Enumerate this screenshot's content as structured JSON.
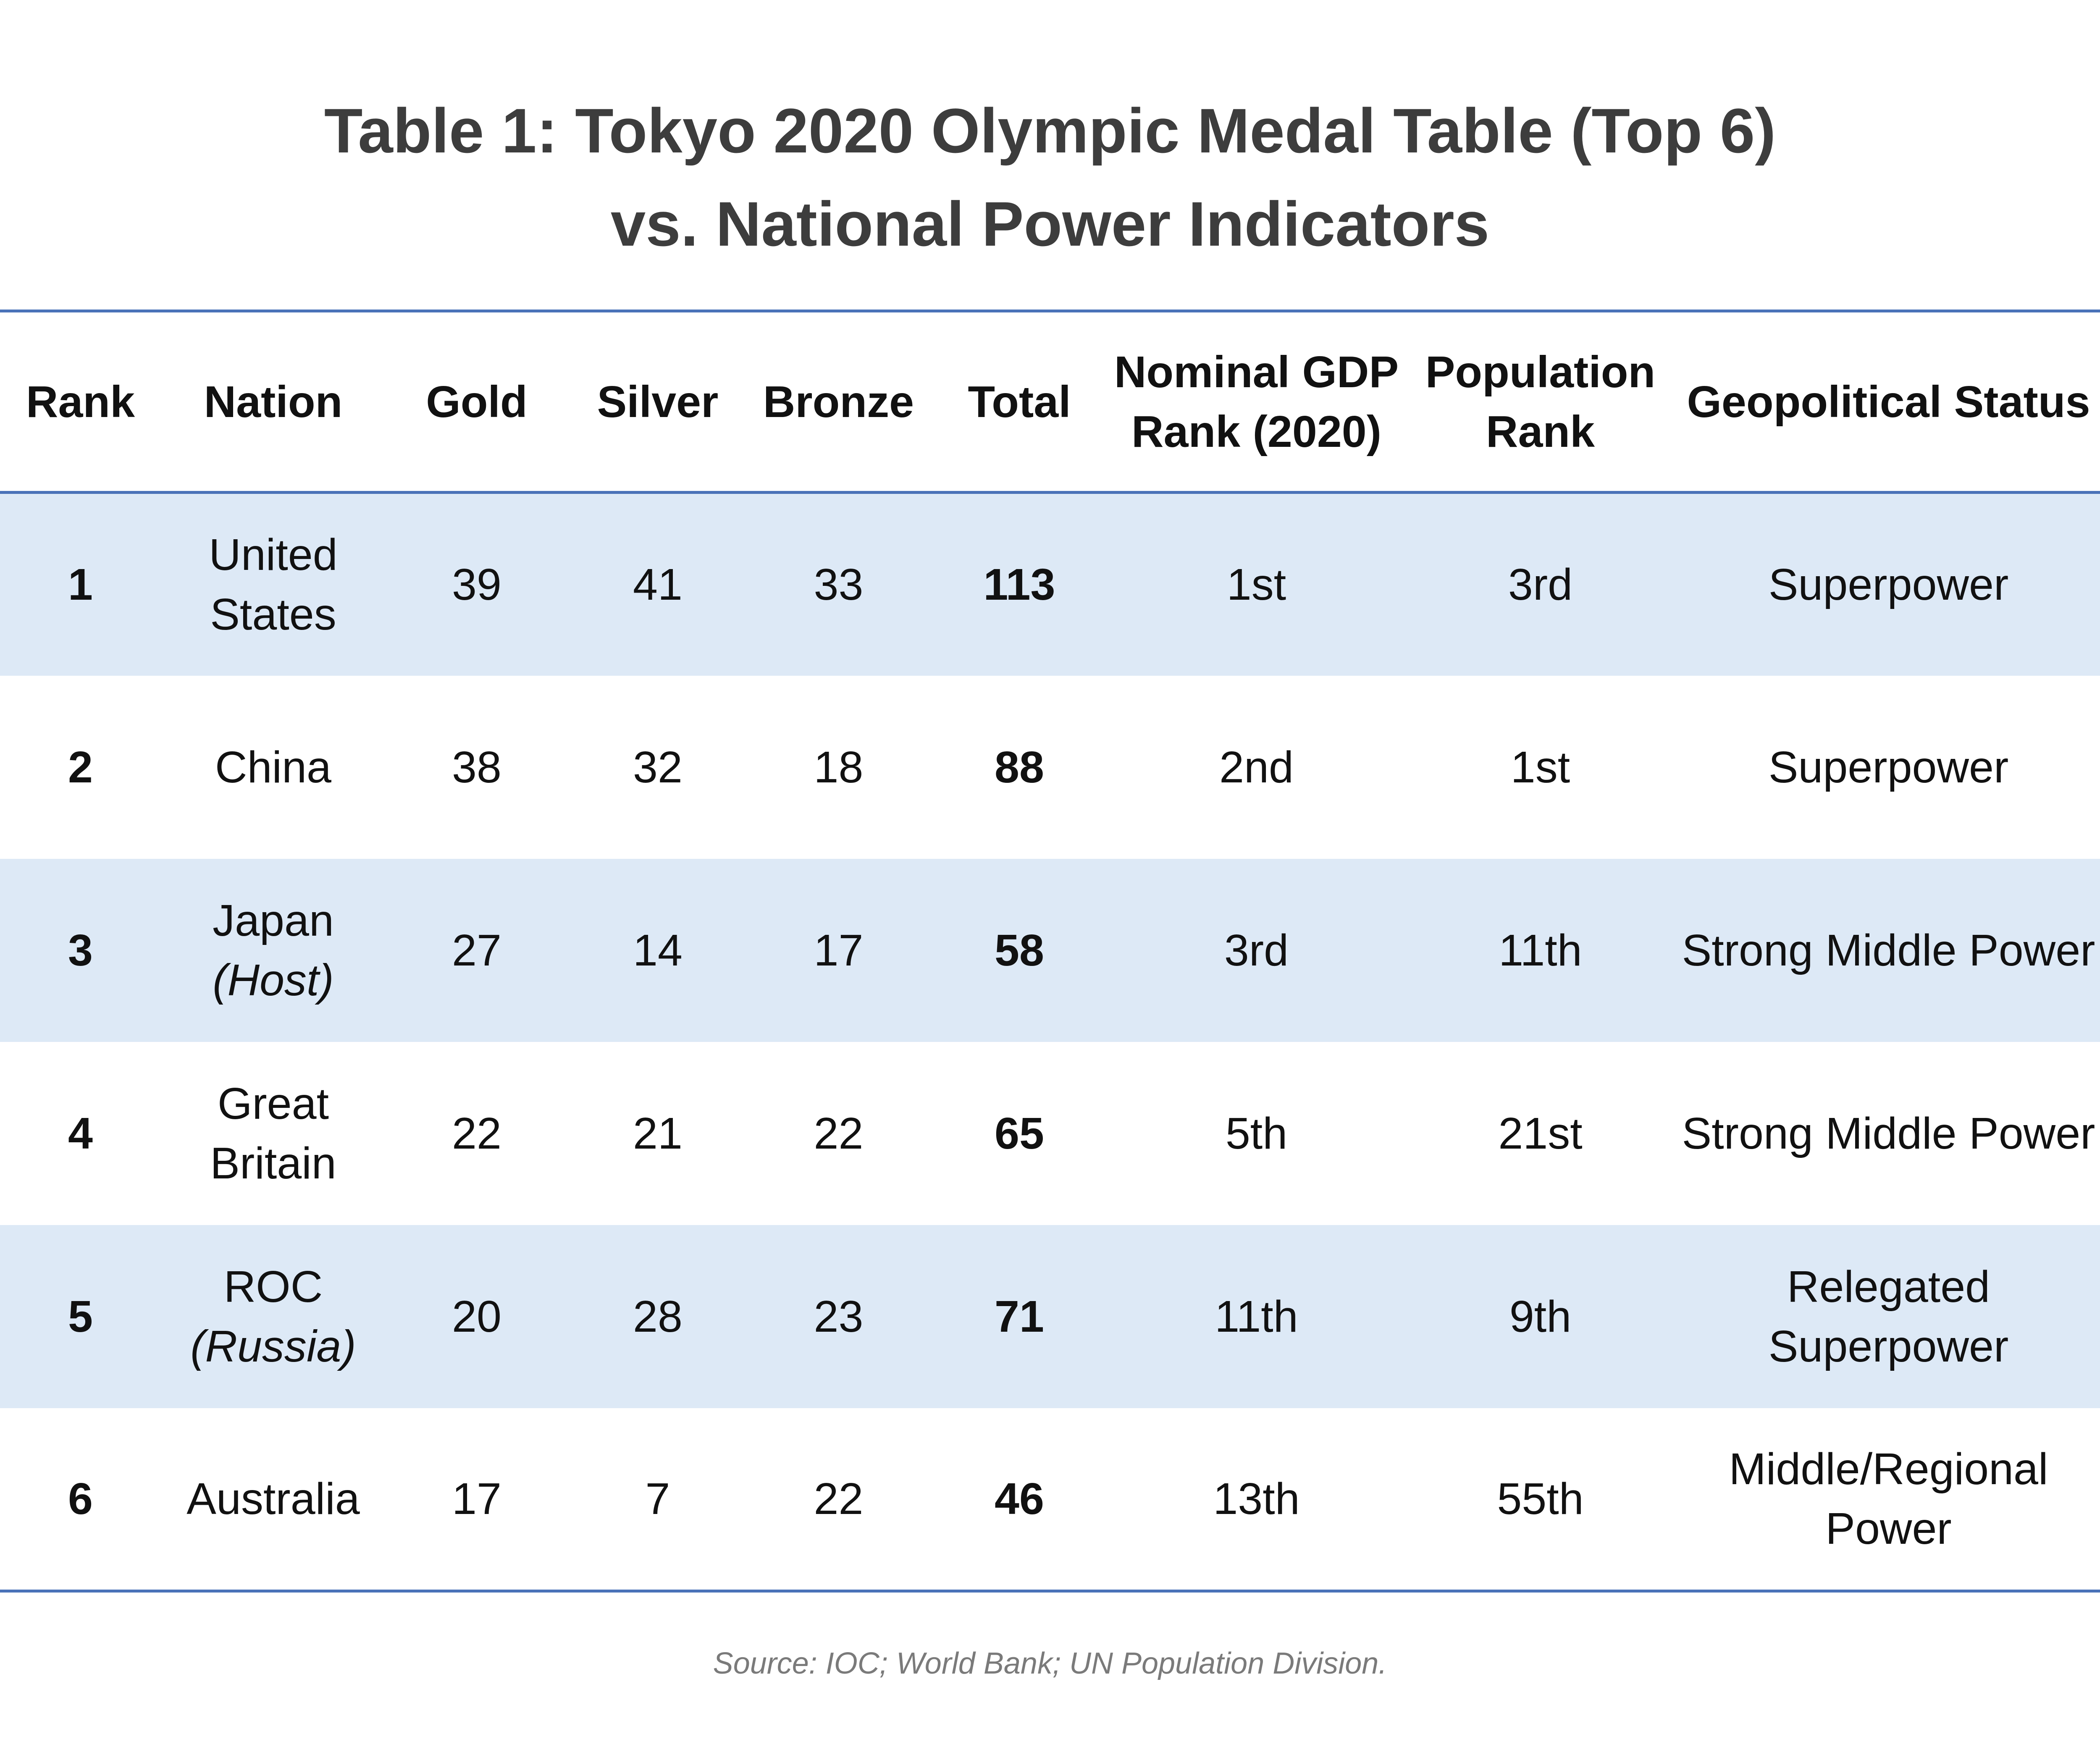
{
  "title": [
    "Table 1: Tokyo 2020 Olympic Medal Table (Top 6)",
    "vs. National Power Indicators"
  ],
  "table": {
    "headers": [
      "Rank",
      "Nation",
      "Gold",
      "Silver",
      "Bronze",
      "Total",
      "Nominal GDP Rank (2020)",
      "Population Rank",
      "Geopolitical Status"
    ],
    "rows": [
      [
        "1",
        {
          "name": "United States"
        },
        "39",
        "41",
        "33",
        "113",
        "1st",
        "3rd",
        "Superpower"
      ],
      [
        "2",
        {
          "name": "China"
        },
        "38",
        "32",
        "18",
        "88",
        "2nd",
        "1st",
        "Superpower"
      ],
      [
        "3",
        {
          "name": "Japan",
          "note": "(Host)"
        },
        "27",
        "14",
        "17",
        "58",
        "3rd",
        "11th",
        "Strong Middle Power"
      ],
      [
        "4",
        {
          "name": "Great Britain"
        },
        "22",
        "21",
        "22",
        "65",
        "5th",
        "21st",
        "Strong Middle Power"
      ],
      [
        "5",
        {
          "name": "ROC",
          "note": "(Russia)"
        },
        "20",
        "28",
        "23",
        "71",
        "11th",
        "9th",
        "Relegated Superpower"
      ],
      [
        "6",
        {
          "name": "Australia"
        },
        "17",
        "7",
        "22",
        "46",
        "13th",
        "55th",
        "Middle/Regional Power"
      ]
    ]
  },
  "source": "Source: IOC; World Bank; UN Population Division."
}
